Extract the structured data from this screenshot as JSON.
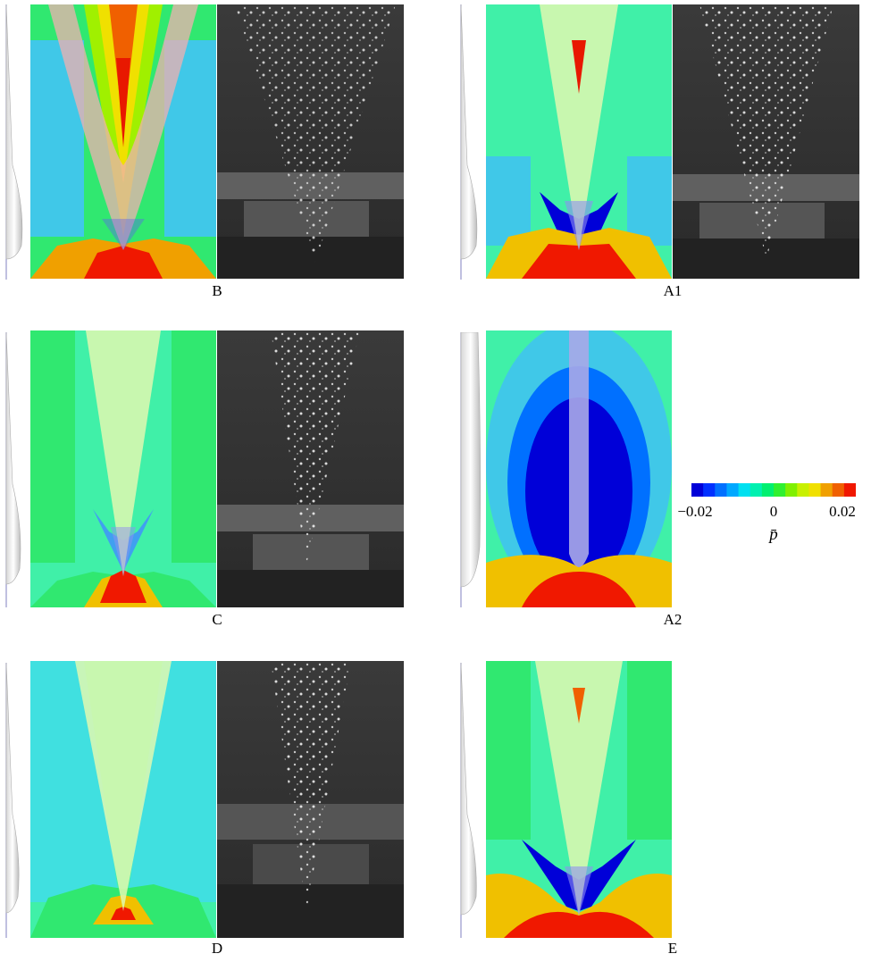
{
  "panels": [
    {
      "id": "B",
      "label": "B"
    },
    {
      "id": "A1",
      "label": "A1"
    },
    {
      "id": "C",
      "label": "C"
    },
    {
      "id": "A2",
      "label": "A2"
    },
    {
      "id": "D",
      "label": "D"
    },
    {
      "id": "E",
      "label": "E"
    }
  ],
  "colorbar": {
    "min_label": "−0.02",
    "mid_label": "0",
    "max_label": "0.02",
    "title": "p̄",
    "range": [
      -0.02,
      0.02
    ],
    "colors": [
      "#0000d8",
      "#0030ff",
      "#0070ff",
      "#00a8ff",
      "#00e0f0",
      "#00f0b0",
      "#00f070",
      "#30f030",
      "#80f000",
      "#c8f000",
      "#f0e000",
      "#f0a000",
      "#f06000",
      "#f01800"
    ]
  },
  "colors": {
    "background_field": "#40f0a8",
    "high_pressure": "#f01800",
    "low_pressure": "#0030ff",
    "photo_bg": "#303030"
  }
}
